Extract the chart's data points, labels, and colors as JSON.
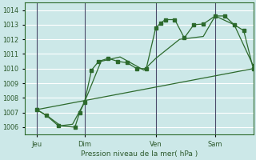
{
  "title": "Pression niveau de la mer( hPa )",
  "background_color": "#cce8e8",
  "grid_color": "#ffffff",
  "line_color": "#2d6a2d",
  "vline_color": "#4a4a6a",
  "ylim": [
    1005.5,
    1014.5
  ],
  "xlim": [
    0.0,
    9.6
  ],
  "yticks": [
    1006,
    1007,
    1008,
    1009,
    1010,
    1011,
    1012,
    1013,
    1014
  ],
  "day_positions": [
    0.5,
    2.5,
    5.5,
    8.0
  ],
  "day_labels": [
    "Jeu",
    "Dim",
    "Ven",
    "Sam"
  ],
  "day_vlines": [
    0.5,
    2.5,
    5.5,
    8.0
  ],
  "series1_x": [
    0.5,
    0.9,
    1.4,
    2.1,
    2.3,
    2.5,
    2.8,
    3.1,
    3.5,
    3.9,
    4.3,
    4.7,
    5.1,
    5.5,
    5.7,
    5.9,
    6.3,
    6.7,
    7.1,
    7.5,
    8.0,
    8.4,
    8.8,
    9.2,
    9.6
  ],
  "series1_y": [
    1007.2,
    1006.8,
    1006.1,
    1006.0,
    1007.0,
    1007.7,
    1009.9,
    1010.5,
    1010.7,
    1010.5,
    1010.4,
    1010.0,
    1010.0,
    1012.8,
    1013.1,
    1013.35,
    1013.35,
    1012.1,
    1013.0,
    1013.05,
    1013.6,
    1013.6,
    1013.0,
    1012.6,
    1010.0
  ],
  "series2_x": [
    0.5,
    1.0,
    1.5,
    2.0,
    2.5,
    3.2,
    4.0,
    5.0,
    5.5,
    6.5,
    7.5,
    8.0,
    8.8,
    9.6
  ],
  "series2_y": [
    1007.2,
    1006.7,
    1006.1,
    1006.2,
    1007.7,
    1010.5,
    1010.8,
    1009.9,
    1010.7,
    1012.0,
    1012.2,
    1013.6,
    1013.0,
    1010.2
  ],
  "series3_x": [
    0.5,
    9.6
  ],
  "series3_y": [
    1007.2,
    1010.0
  ]
}
